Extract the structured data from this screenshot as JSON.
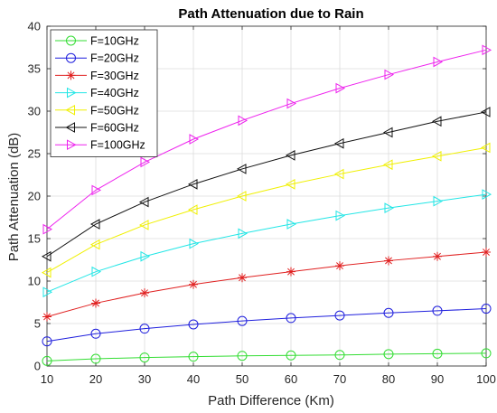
{
  "chart_data": {
    "type": "line",
    "title": "Path Attenuation due to Rain",
    "xlabel": "Path Difference (Km)",
    "ylabel": "Path Attenuation (dB)",
    "xlim": [
      10,
      100
    ],
    "ylim": [
      0,
      40
    ],
    "xticks": [
      10,
      20,
      30,
      40,
      50,
      60,
      70,
      80,
      90,
      100
    ],
    "yticks": [
      0,
      5,
      10,
      15,
      20,
      25,
      30,
      35,
      40
    ],
    "grid": true,
    "legend_position": "top-left",
    "x": [
      10,
      20,
      30,
      40,
      50,
      60,
      70,
      80,
      90,
      100
    ],
    "series": [
      {
        "name": "F=10GHz",
        "color": "#33dd33",
        "marker": "circle",
        "values": [
          0.6,
          0.85,
          1.0,
          1.1,
          1.2,
          1.25,
          1.3,
          1.4,
          1.45,
          1.5
        ]
      },
      {
        "name": "F=20GHz",
        "color": "#1f1fdd",
        "marker": "circle",
        "values": [
          2.9,
          3.8,
          4.4,
          4.9,
          5.3,
          5.65,
          5.95,
          6.25,
          6.5,
          6.75
        ]
      },
      {
        "name": "F=30GHz",
        "color": "#e02020",
        "marker": "star",
        "values": [
          5.8,
          7.4,
          8.6,
          9.6,
          10.4,
          11.1,
          11.8,
          12.4,
          12.9,
          13.4
        ]
      },
      {
        "name": "F=40GHz",
        "color": "#22e6e6",
        "marker": "triangle-right",
        "values": [
          8.7,
          11.1,
          12.9,
          14.4,
          15.6,
          16.7,
          17.7,
          18.6,
          19.4,
          20.2
        ]
      },
      {
        "name": "F=50GHz",
        "color": "#f0f000",
        "marker": "triangle-left",
        "values": [
          11.0,
          14.3,
          16.6,
          18.4,
          20.0,
          21.4,
          22.6,
          23.7,
          24.7,
          25.7
        ]
      },
      {
        "name": "F=60GHz",
        "color": "#111111",
        "marker": "triangle-left",
        "values": [
          12.9,
          16.7,
          19.3,
          21.4,
          23.2,
          24.8,
          26.2,
          27.5,
          28.8,
          29.9
        ]
      },
      {
        "name": "F=100GHz",
        "color": "#ee22ee",
        "marker": "triangle-right",
        "values": [
          16.1,
          20.7,
          24.0,
          26.7,
          28.9,
          30.9,
          32.7,
          34.3,
          35.8,
          37.2
        ]
      }
    ]
  }
}
